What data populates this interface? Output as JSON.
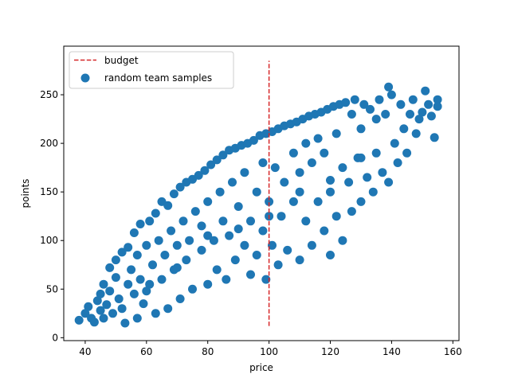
{
  "chart_data": {
    "type": "scatter",
    "title": "",
    "xlabel": "price",
    "ylabel": "points",
    "xlim": [
      33,
      162
    ],
    "ylim": [
      -3,
      300
    ],
    "xticks": [
      40,
      60,
      80,
      100,
      120,
      140,
      160
    ],
    "yticks": [
      0,
      50,
      100,
      150,
      200,
      250
    ],
    "grid": false,
    "legend": {
      "placement": "upper-left",
      "entries": [
        "budget",
        "random team samples"
      ]
    },
    "series": [
      {
        "name": "random team samples",
        "kind": "scatter",
        "color": "#1f77b4",
        "points": [
          [
            38,
            18
          ],
          [
            40,
            25
          ],
          [
            41,
            32
          ],
          [
            42,
            20
          ],
          [
            43,
            16
          ],
          [
            44,
            38
          ],
          [
            45,
            45
          ],
          [
            45,
            28
          ],
          [
            46,
            55
          ],
          [
            46,
            20
          ],
          [
            47,
            34
          ],
          [
            48,
            72
          ],
          [
            48,
            48
          ],
          [
            49,
            25
          ],
          [
            50,
            62
          ],
          [
            50,
            80
          ],
          [
            51,
            40
          ],
          [
            52,
            88
          ],
          [
            52,
            30
          ],
          [
            53,
            15
          ],
          [
            54,
            93
          ],
          [
            54,
            55
          ],
          [
            55,
            70
          ],
          [
            56,
            108
          ],
          [
            56,
            45
          ],
          [
            57,
            20
          ],
          [
            57,
            85
          ],
          [
            58,
            117
          ],
          [
            58,
            60
          ],
          [
            59,
            35
          ],
          [
            60,
            95
          ],
          [
            61,
            120
          ],
          [
            61,
            55
          ],
          [
            62,
            75
          ],
          [
            63,
            128
          ],
          [
            63,
            25
          ],
          [
            64,
            100
          ],
          [
            65,
            140
          ],
          [
            65,
            60
          ],
          [
            66,
            85
          ],
          [
            67,
            136
          ],
          [
            67,
            30
          ],
          [
            68,
            110
          ],
          [
            69,
            148
          ],
          [
            69,
            70
          ],
          [
            70,
            95
          ],
          [
            71,
            155
          ],
          [
            71,
            40
          ],
          [
            72,
            120
          ],
          [
            73,
            160
          ],
          [
            73,
            80
          ],
          [
            74,
            100
          ],
          [
            75,
            163
          ],
          [
            75,
            50
          ],
          [
            76,
            130
          ],
          [
            77,
            167
          ],
          [
            78,
            90
          ],
          [
            78,
            115
          ],
          [
            79,
            172
          ],
          [
            80,
            55
          ],
          [
            80,
            140
          ],
          [
            81,
            178
          ],
          [
            82,
            100
          ],
          [
            83,
            183
          ],
          [
            83,
            70
          ],
          [
            84,
            150
          ],
          [
            85,
            188
          ],
          [
            85,
            120
          ],
          [
            86,
            60
          ],
          [
            87,
            193
          ],
          [
            87,
            105
          ],
          [
            88,
            160
          ],
          [
            89,
            195
          ],
          [
            89,
            80
          ],
          [
            90,
            135
          ],
          [
            91,
            198
          ],
          [
            92,
            95
          ],
          [
            92,
            170
          ],
          [
            93,
            200
          ],
          [
            94,
            65
          ],
          [
            94,
            120
          ],
          [
            95,
            203
          ],
          [
            96,
            150
          ],
          [
            96,
            85
          ],
          [
            97,
            208
          ],
          [
            98,
            110
          ],
          [
            98,
            180
          ],
          [
            99,
            210
          ],
          [
            99,
            60
          ],
          [
            100,
            140
          ],
          [
            101,
            212
          ],
          [
            101,
            95
          ],
          [
            102,
            175
          ],
          [
            103,
            215
          ],
          [
            103,
            75
          ],
          [
            104,
            125
          ],
          [
            105,
            218
          ],
          [
            105,
            160
          ],
          [
            106,
            90
          ],
          [
            107,
            220
          ],
          [
            108,
            140
          ],
          [
            108,
            190
          ],
          [
            109,
            222
          ],
          [
            110,
            80
          ],
          [
            110,
            170
          ],
          [
            111,
            225
          ],
          [
            112,
            120
          ],
          [
            112,
            200
          ],
          [
            113,
            228
          ],
          [
            114,
            95
          ],
          [
            114,
            180
          ],
          [
            115,
            230
          ],
          [
            116,
            140
          ],
          [
            116,
            205
          ],
          [
            117,
            232
          ],
          [
            118,
            110
          ],
          [
            118,
            190
          ],
          [
            119,
            235
          ],
          [
            120,
            150
          ],
          [
            120,
            85
          ],
          [
            121,
            238
          ],
          [
            122,
            210
          ],
          [
            122,
            125
          ],
          [
            123,
            240
          ],
          [
            124,
            175
          ],
          [
            124,
            100
          ],
          [
            125,
            242
          ],
          [
            126,
            160
          ],
          [
            127,
            230
          ],
          [
            127,
            130
          ],
          [
            128,
            245
          ],
          [
            129,
            185
          ],
          [
            130,
            140
          ],
          [
            130,
            215
          ],
          [
            131,
            240
          ],
          [
            132,
            165
          ],
          [
            133,
            235
          ],
          [
            134,
            150
          ],
          [
            135,
            225
          ],
          [
            135,
            190
          ],
          [
            136,
            245
          ],
          [
            137,
            170
          ],
          [
            138,
            230
          ],
          [
            139,
            258
          ],
          [
            139,
            160
          ],
          [
            140,
            250
          ],
          [
            141,
            200
          ],
          [
            142,
            180
          ],
          [
            143,
            240
          ],
          [
            144,
            215
          ],
          [
            145,
            190
          ],
          [
            146,
            230
          ],
          [
            147,
            245
          ],
          [
            148,
            210
          ],
          [
            149,
            225
          ],
          [
            150,
            232
          ],
          [
            151,
            254
          ],
          [
            152,
            240
          ],
          [
            153,
            228
          ],
          [
            154,
            206
          ],
          [
            155,
            245
          ],
          [
            155,
            238
          ],
          [
            60,
            48
          ],
          [
            70,
            72
          ],
          [
            80,
            105
          ],
          [
            90,
            112
          ],
          [
            100,
            125
          ],
          [
            110,
            150
          ],
          [
            120,
            162
          ],
          [
            130,
            185
          ]
        ]
      },
      {
        "name": "budget",
        "kind": "vline",
        "color": "#d62728",
        "x": 100,
        "y_range": [
          12,
          285
        ]
      }
    ]
  }
}
